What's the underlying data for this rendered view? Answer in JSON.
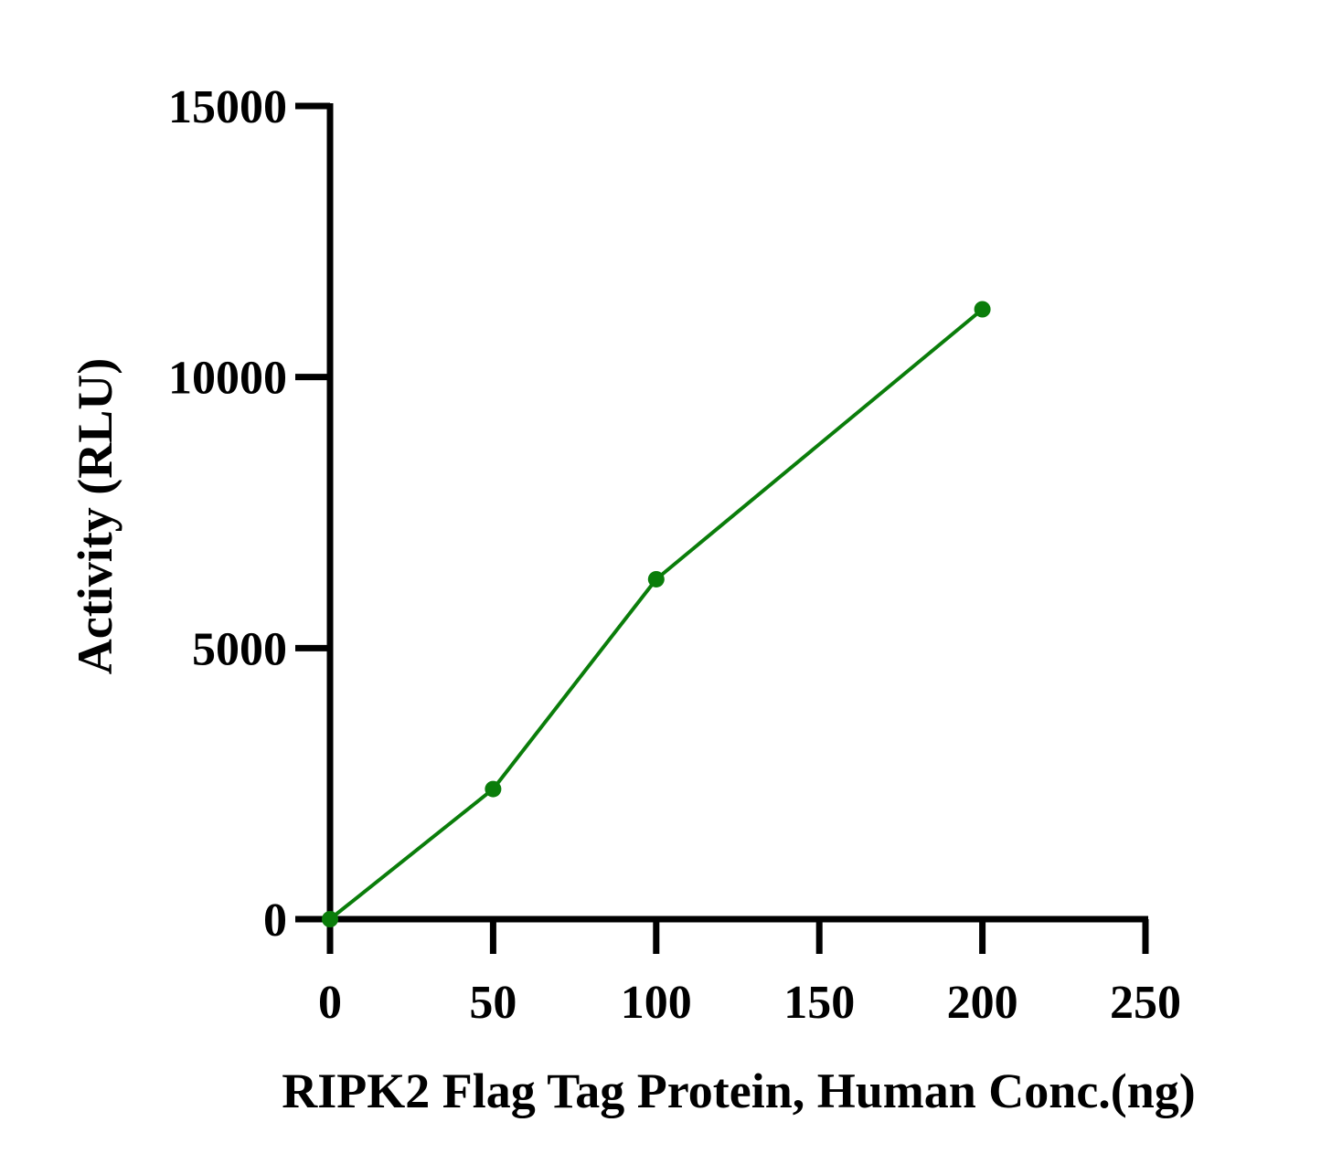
{
  "chart_data": {
    "type": "line",
    "title": "",
    "xlabel": "RIPK2 Flag Tag Protein, Human Conc.(ng)",
    "ylabel": "Activity (RLU)",
    "xlim": [
      0,
      250
    ],
    "ylim": [
      0,
      15000
    ],
    "xticks": [
      0,
      50,
      100,
      150,
      200,
      250
    ],
    "yticks": [
      0,
      5000,
      10000,
      15000
    ],
    "grid": false,
    "legend": "none",
    "series": [
      {
        "color": "#0a7d0a",
        "x": [
          0,
          50,
          100,
          200
        ],
        "y": [
          0,
          2400,
          6270,
          11250
        ]
      }
    ]
  }
}
